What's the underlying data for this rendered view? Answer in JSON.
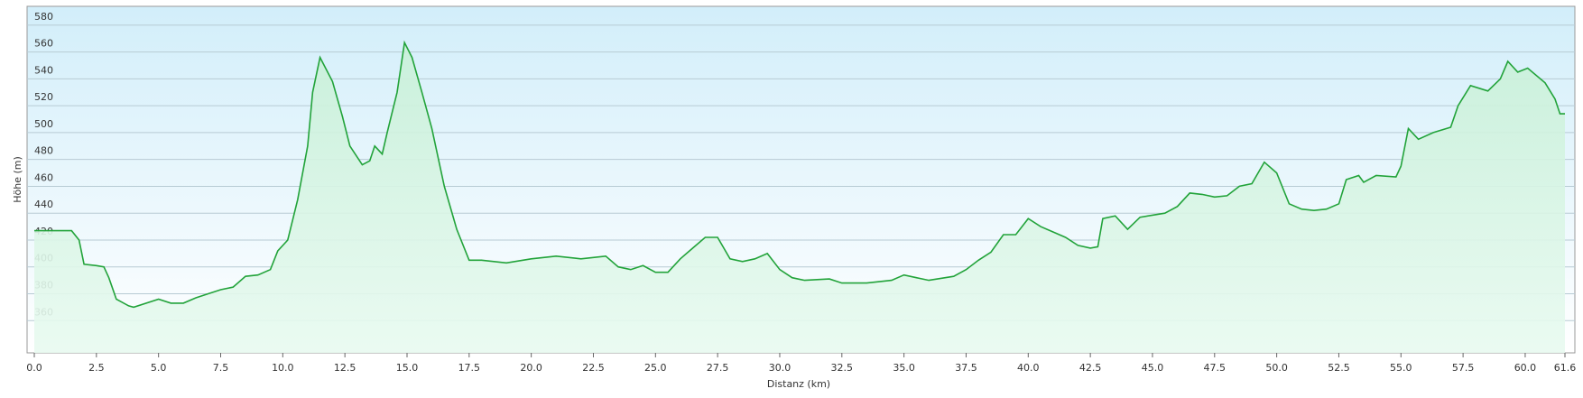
{
  "chart_data": {
    "type": "area",
    "x_label": "Distanz  (km)",
    "y_label": "Höhe (m)",
    "x": [
      0,
      1.5,
      1.8,
      2.0,
      2.5,
      2.8,
      3.0,
      3.3,
      3.8,
      4.0,
      5.0,
      5.5,
      6.0,
      6.5,
      7.0,
      7.5,
      8.0,
      8.5,
      9.0,
      9.5,
      9.8,
      10.2,
      10.6,
      11.0,
      11.2,
      11.5,
      12.0,
      12.4,
      12.7,
      13.2,
      13.5,
      13.7,
      14.0,
      14.2,
      14.6,
      14.9,
      15.2,
      15.6,
      16.0,
      16.5,
      17.0,
      17.5,
      18.0,
      19.0,
      20.0,
      21.0,
      22.0,
      23.0,
      23.5,
      24.0,
      24.5,
      25.0,
      25.5,
      26.0,
      26.5,
      27.0,
      27.5,
      28.0,
      28.5,
      29.0,
      29.5,
      30.0,
      30.5,
      31.0,
      32.0,
      32.5,
      33.5,
      34.5,
      35.0,
      35.5,
      36.0,
      37.0,
      37.5,
      38.0,
      38.5,
      39.0,
      39.5,
      40.0,
      40.5,
      41.0,
      41.5,
      42.0,
      42.5,
      42.8,
      43.0,
      43.5,
      44.0,
      44.5,
      45.5,
      46.0,
      46.5,
      47.0,
      47.5,
      48.0,
      48.5,
      49.0,
      49.5,
      50.0,
      50.5,
      51.0,
      51.5,
      52.0,
      52.5,
      52.8,
      53.3,
      53.5,
      54.0,
      54.8,
      55.0,
      55.3,
      55.7,
      56.3,
      57.0,
      57.3,
      57.8,
      58.5,
      59.0,
      59.3,
      59.7,
      60.1,
      60.8,
      61.2,
      61.4,
      61.6
    ],
    "values": [
      427,
      427,
      420,
      402,
      401,
      400,
      392,
      376,
      371,
      370,
      376,
      373,
      373,
      377,
      380,
      383,
      385,
      393,
      394,
      398,
      412,
      420,
      450,
      490,
      530,
      556,
      538,
      512,
      490,
      476,
      479,
      490,
      484,
      500,
      530,
      567,
      556,
      530,
      503,
      460,
      428,
      405,
      405,
      403,
      406,
      408,
      406,
      408,
      400,
      398,
      401,
      396,
      396,
      406,
      414,
      422,
      422,
      406,
      404,
      406,
      410,
      398,
      392,
      390,
      391,
      388,
      388,
      390,
      394,
      392,
      390,
      393,
      398,
      405,
      411,
      424,
      424,
      436,
      430,
      426,
      422,
      416,
      414,
      415,
      436,
      438,
      428,
      437,
      440,
      445,
      455,
      454,
      452,
      453,
      460,
      462,
      478,
      470,
      447,
      443,
      442,
      443,
      447,
      465,
      468,
      463,
      468,
      467,
      475,
      503,
      495,
      500,
      504,
      520,
      535,
      531,
      540,
      553,
      545,
      548,
      537,
      525,
      514,
      514
    ],
    "color": "#22a33a",
    "fill": "#c8f0d8",
    "xlim": [
      0,
      61.6
    ],
    "ylim": [
      336,
      594
    ],
    "xticks": [
      {
        "value": 0,
        "label": "0.0"
      },
      2.5,
      {
        "value": 5,
        "label": "5.0"
      },
      7.5,
      {
        "value": 10,
        "label": "10.0"
      },
      12.5,
      {
        "value": 15,
        "label": "15.0"
      },
      17.5,
      {
        "value": 20,
        "label": "20.0"
      },
      22.5,
      {
        "value": 25,
        "label": "25.0"
      },
      27.5,
      {
        "value": 30,
        "label": "30.0"
      },
      32.5,
      {
        "value": 35,
        "label": "35.0"
      },
      37.5,
      {
        "value": 40,
        "label": "40.0"
      },
      42.5,
      {
        "value": 45,
        "label": "45.0"
      },
      47.5,
      {
        "value": 50,
        "label": "50.0"
      },
      52.5,
      {
        "value": 55,
        "label": "55.0"
      },
      57.5,
      {
        "value": 60,
        "label": "60.0"
      },
      61.6
    ],
    "yticks": [
      360,
      380,
      400,
      420,
      440,
      460,
      480,
      500,
      520,
      540,
      560,
      580
    ],
    "grid": true
  }
}
